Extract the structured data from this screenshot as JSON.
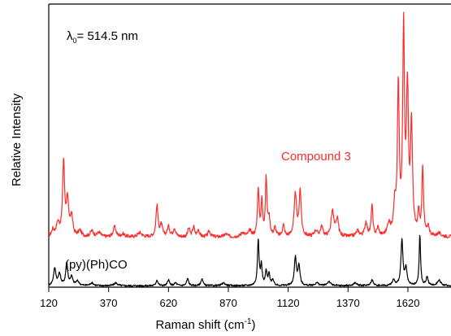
{
  "chart_data": {
    "type": "line",
    "title": "",
    "xlabel": "Raman shift (cm",
    "xlabel_sup": "-1",
    "xlabel_end": ")",
    "ylabel": "Relative Intensity",
    "xlim": [
      120,
      1800
    ],
    "ylim": [
      0,
      1
    ],
    "y_ticks_labeled": false,
    "x_ticks": [
      120,
      370,
      620,
      870,
      1120,
      1370,
      1620
    ],
    "x_tick_labels": [
      "120",
      "370",
      "620",
      "870",
      "1120",
      "1370",
      "1620"
    ],
    "grid": false,
    "annotation_wavelength": {
      "symbol": "λ",
      "subscript": "0",
      "text": "= 514.5 nm"
    },
    "series": [
      {
        "name": "Compound 3",
        "color": "#ff2a2a",
        "baseline": 0.177,
        "noise": 0.006,
        "peaks": [
          [
            137,
            0.022,
            6
          ],
          [
            158,
            0.045,
            8
          ],
          [
            182,
            0.26,
            5
          ],
          [
            198,
            0.12,
            6
          ],
          [
            215,
            0.07,
            6
          ],
          [
            250,
            0.02,
            8
          ],
          [
            300,
            0.02,
            8
          ],
          [
            330,
            0.015,
            8
          ],
          [
            395,
            0.035,
            7
          ],
          [
            430,
            0.01,
            8
          ],
          [
            500,
            0.015,
            10
          ],
          [
            572,
            0.11,
            5
          ],
          [
            590,
            0.04,
            6
          ],
          [
            620,
            0.035,
            6
          ],
          [
            645,
            0.03,
            6
          ],
          [
            705,
            0.03,
            5
          ],
          [
            725,
            0.035,
            5
          ],
          [
            745,
            0.025,
            5
          ],
          [
            790,
            0.02,
            6
          ],
          [
            860,
            0.01,
            8
          ],
          [
            930,
            0.015,
            8
          ],
          [
            960,
            0.02,
            8
          ],
          [
            995,
            0.17,
            4
          ],
          [
            1010,
            0.12,
            4
          ],
          [
            1028,
            0.2,
            4
          ],
          [
            1040,
            0.06,
            5
          ],
          [
            1065,
            0.03,
            5
          ],
          [
            1100,
            0.04,
            5
          ],
          [
            1150,
            0.15,
            6
          ],
          [
            1170,
            0.16,
            5
          ],
          [
            1235,
            0.02,
            8
          ],
          [
            1260,
            0.035,
            6
          ],
          [
            1305,
            0.09,
            7
          ],
          [
            1325,
            0.06,
            6
          ],
          [
            1410,
            0.02,
            8
          ],
          [
            1445,
            0.05,
            6
          ],
          [
            1470,
            0.11,
            4
          ],
          [
            1495,
            0.03,
            5
          ],
          [
            1540,
            0.04,
            7
          ],
          [
            1565,
            0.1,
            6
          ],
          [
            1580,
            0.52,
            4.5
          ],
          [
            1602,
            0.72,
            4.5
          ],
          [
            1618,
            0.5,
            5
          ],
          [
            1635,
            0.38,
            5
          ],
          [
            1665,
            0.08,
            4
          ],
          [
            1682,
            0.24,
            4
          ],
          [
            1705,
            0.03,
            6
          ],
          [
            1750,
            0.01,
            10
          ]
        ]
      },
      {
        "name": "(py)(Ph)CO",
        "color": "#000000",
        "baseline": 0.005,
        "noise": 0.003,
        "peaks": [
          [
            145,
            0.06,
            6
          ],
          [
            165,
            0.04,
            6
          ],
          [
            195,
            0.08,
            5
          ],
          [
            215,
            0.03,
            6
          ],
          [
            240,
            0.015,
            8
          ],
          [
            300,
            0.01,
            8
          ],
          [
            400,
            0.01,
            8
          ],
          [
            572,
            0.02,
            5
          ],
          [
            620,
            0.02,
            5
          ],
          [
            650,
            0.01,
            6
          ],
          [
            700,
            0.025,
            5
          ],
          [
            760,
            0.025,
            5
          ],
          [
            850,
            0.01,
            8
          ],
          [
            995,
            0.16,
            4
          ],
          [
            1008,
            0.07,
            4
          ],
          [
            1028,
            0.05,
            4
          ],
          [
            1040,
            0.04,
            4
          ],
          [
            1055,
            0.02,
            5
          ],
          [
            1150,
            0.1,
            5
          ],
          [
            1165,
            0.07,
            5
          ],
          [
            1240,
            0.01,
            8
          ],
          [
            1290,
            0.015,
            8
          ],
          [
            1400,
            0.01,
            8
          ],
          [
            1470,
            0.02,
            6
          ],
          [
            1560,
            0.02,
            6
          ],
          [
            1595,
            0.16,
            5
          ],
          [
            1612,
            0.06,
            5
          ],
          [
            1670,
            0.18,
            3.5
          ],
          [
            1700,
            0.03,
            5
          ],
          [
            1750,
            0.02,
            8
          ]
        ]
      }
    ]
  },
  "colors": {
    "axis": "#000000",
    "compound3": "#ff2a2a",
    "reference": "#000000"
  }
}
